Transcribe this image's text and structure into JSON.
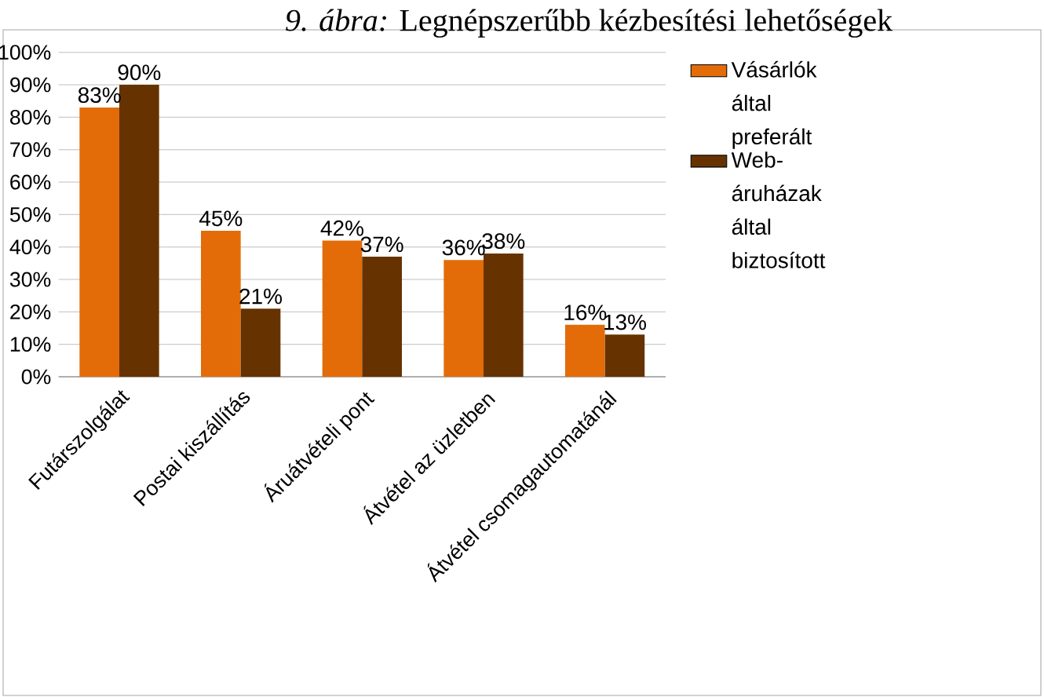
{
  "chart_data": {
    "type": "bar",
    "title": "*9. ábra:* Legnépszerűbb kézbesítési lehetőségek",
    "categories": [
      "Futárszolgálat",
      "Postai kiszállítás",
      "Áruátvételi pont",
      "Átvétel az üzletben",
      "Átvétel csomagautomatánál"
    ],
    "series": [
      {
        "name": "Vásárlók által preferált",
        "color": "#e36c09",
        "values": [
          83,
          45,
          42,
          36,
          16
        ],
        "value_labels": [
          "83%",
          "45%",
          "42%",
          "36%",
          "16%"
        ]
      },
      {
        "name": "Web-áruházak által biztosított",
        "color": "#663300",
        "values": [
          90,
          21,
          37,
          38,
          13
        ],
        "value_labels": [
          "90%",
          "21%",
          "37%",
          "38%",
          "13%"
        ]
      }
    ],
    "ylim": [
      0,
      100
    ],
    "yticks": [
      {
        "value": 0,
        "label": "0%"
      },
      {
        "value": 10,
        "label": "10%"
      },
      {
        "value": 20,
        "label": "20%"
      },
      {
        "value": 30,
        "label": "30%"
      },
      {
        "value": 40,
        "label": "40%"
      },
      {
        "value": 50,
        "label": "50%"
      },
      {
        "value": 60,
        "label": "60%"
      },
      {
        "value": 70,
        "label": "70%"
      },
      {
        "value": 80,
        "label": "80%"
      },
      {
        "value": 90,
        "label": "90%"
      },
      {
        "value": 100,
        "label": "100%"
      }
    ],
    "grid": "y",
    "legend": "right"
  }
}
